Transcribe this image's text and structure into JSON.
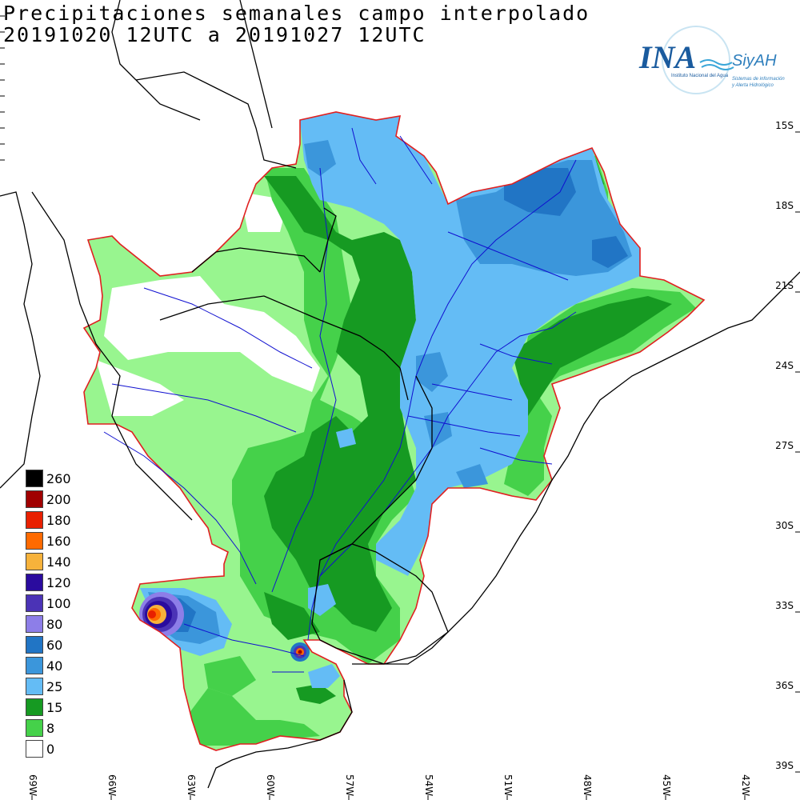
{
  "title": {
    "line1": "Precipitaciones semanales campo interpolado",
    "line2": "20191020 12UTC a 20191027 12UTC"
  },
  "logo": {
    "ina": "INA",
    "siyah": "SiyAH",
    "subtitle1": "Instituto Nacional del Agua",
    "subtitle2": "Sistemas de información",
    "subtitle3": "y Alerta Hidrológico"
  },
  "lat_labels": [
    "15S",
    "18S",
    "21S",
    "24S",
    "27S",
    "30S",
    "33S",
    "36S",
    "39S"
  ],
  "lon_labels": [
    "69W",
    "66W",
    "63W",
    "60W",
    "57W",
    "54W",
    "51W",
    "48W",
    "45W",
    "42W"
  ],
  "legend": [
    {
      "label": "260",
      "color": "#000000"
    },
    {
      "label": "200",
      "color": "#a00000"
    },
    {
      "label": "180",
      "color": "#e82000"
    },
    {
      "label": "160",
      "color": "#ff6a00"
    },
    {
      "label": "140",
      "color": "#f7b23b"
    },
    {
      "label": "120",
      "color": "#2a0b9e"
    },
    {
      "label": "100",
      "color": "#4b33b6"
    },
    {
      "label": "80",
      "color": "#8d7ee8"
    },
    {
      "label": "60",
      "color": "#2175c5"
    },
    {
      "label": "40",
      "color": "#3b96db"
    },
    {
      "label": "25",
      "color": "#64bcf5"
    },
    {
      "label": "15",
      "color": "#169a22"
    },
    {
      "label": "8",
      "color": "#45d14a"
    },
    {
      "label": "0",
      "color": "#ffffff"
    }
  ],
  "colors": {
    "basin_outline": "#e02020",
    "rivers": "#1010d0",
    "borders": "#000000",
    "light_green": "#98f58f",
    "green": "#45d14a",
    "dark_green": "#169a22",
    "light_blue": "#64bcf5",
    "blue": "#3b96db",
    "dark_blue": "#2175c5"
  }
}
